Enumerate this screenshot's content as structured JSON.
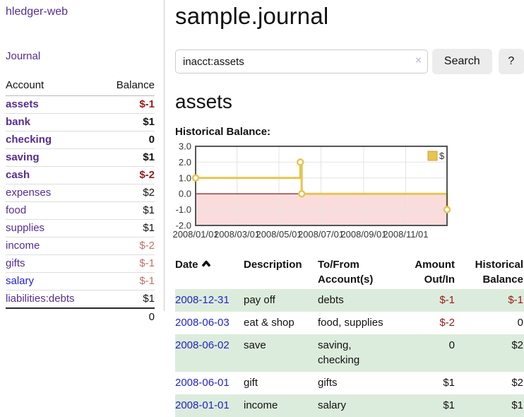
{
  "app": {
    "brand": "hledger-web",
    "nav_journal": "Journal"
  },
  "sidebar": {
    "accounts_table": {
      "headers": [
        "Account",
        "Balance"
      ],
      "rows": [
        {
          "account": "assets",
          "depth": 1,
          "bold": true,
          "color": "purple",
          "balance": "$-1",
          "balance_class": "neg-bold"
        },
        {
          "account": "bank",
          "depth": 2,
          "bold": true,
          "color": "purple",
          "balance": "$1",
          "balance_class": "pos-bold"
        },
        {
          "account": "checking",
          "depth": 3,
          "bold": true,
          "color": "purple",
          "balance": "0",
          "balance_class": "pos-bold"
        },
        {
          "account": "saving",
          "depth": 3,
          "bold": true,
          "color": "purple",
          "balance": "$1",
          "balance_class": "pos-bold"
        },
        {
          "account": "cash",
          "depth": 2,
          "bold": true,
          "color": "purple",
          "balance": "$-2",
          "balance_class": "neg-bold"
        },
        {
          "account": "expenses",
          "depth": 1,
          "bold": false,
          "color": "purple",
          "balance": "$2",
          "balance_class": "pos"
        },
        {
          "account": "food",
          "depth": 2,
          "bold": false,
          "color": "purple",
          "balance": "$1",
          "balance_class": "pos"
        },
        {
          "account": "supplies",
          "depth": 2,
          "bold": false,
          "color": "purple",
          "balance": "$1",
          "balance_class": "pos"
        },
        {
          "account": "income",
          "depth": 1,
          "bold": false,
          "color": "purple",
          "balance": "$-2",
          "balance_class": "neg-soft"
        },
        {
          "account": "gifts",
          "depth": 2,
          "bold": false,
          "color": "purple",
          "balance": "$-1",
          "balance_class": "neg-soft"
        },
        {
          "account": "salary",
          "depth": 2,
          "bold": false,
          "color": "blue",
          "balance": "$-1",
          "balance_class": "neg-soft"
        },
        {
          "account": "liabilities:debts",
          "depth": 1,
          "bold": false,
          "color": "purple",
          "balance": "$1",
          "balance_class": "pos"
        }
      ],
      "total": "0"
    }
  },
  "header": {
    "title": "sample.journal"
  },
  "search": {
    "value": "inacct:assets",
    "clear_icon": "×",
    "search_label": "Search",
    "help_label": "?"
  },
  "account_page": {
    "title": "assets",
    "chart_label": "Historical Balance:"
  },
  "chart_data": {
    "type": "line",
    "step": true,
    "title": "Historical Balance:",
    "x_domain": [
      "2008-01-01",
      "2008-12-31"
    ],
    "ylim": [
      -2,
      3
    ],
    "x_tick_labels": [
      "2008/01/01",
      "2008/03/01",
      "2008/05/01",
      "2008/07/01",
      "2008/09/01",
      "2008/11/01"
    ],
    "y_tick_labels": [
      "3.0",
      "2.0",
      "1.0",
      "0.0",
      "-1.0",
      "-2.0"
    ],
    "series": [
      {
        "name": "$",
        "points": [
          [
            "2008-01-01",
            1
          ],
          [
            "2008-06-01",
            2
          ],
          [
            "2008-06-03",
            0
          ],
          [
            "2008-12-31",
            -1
          ]
        ]
      }
    ],
    "legend_position": "top-right",
    "grid": true,
    "negative_region": true,
    "style": {
      "line_color": "#e8c44f",
      "marker_fill": "#ffffff",
      "negative_fill": "#fbdcdc",
      "zero_line_color": "#8b0000",
      "grid_color": "#e4e4e4",
      "border_color": "#555555",
      "tick_label_color": "#333333"
    }
  },
  "register": {
    "headers": {
      "date": "Date",
      "description": "Description",
      "tofrom": "To/From Account(s)",
      "amount": "Amount Out/In",
      "balance": "Historical Balance"
    },
    "rows": [
      {
        "date": "2008-12-31",
        "description": "pay off",
        "tofrom": "debts",
        "amount": "$-1",
        "amount_class": "neg",
        "balance": "$-1",
        "balance_class": "neg"
      },
      {
        "date": "2008-06-03",
        "description": "eat & shop",
        "tofrom": "food, supplies",
        "amount": "$-2",
        "amount_class": "neg",
        "balance": "0",
        "balance_class": ""
      },
      {
        "date": "2008-06-02",
        "description": "save",
        "tofrom": "saving, checking",
        "amount": "0",
        "amount_class": "",
        "balance": "$2",
        "balance_class": ""
      },
      {
        "date": "2008-06-01",
        "description": "gift",
        "tofrom": "gifts",
        "amount": "$1",
        "amount_class": "",
        "balance": "$2",
        "balance_class": ""
      },
      {
        "date": "2008-01-01",
        "description": "income",
        "tofrom": "salary",
        "amount": "$1",
        "amount_class": "",
        "balance": "$1",
        "balance_class": ""
      }
    ]
  },
  "colors": {
    "link_purple": "#552d90",
    "link_blue": "#2222cc",
    "negative_strong": "#971a1a",
    "negative_soft": "#c06f6a",
    "row_green": "#dcecdc",
    "chart_line": "#e8c44f"
  }
}
